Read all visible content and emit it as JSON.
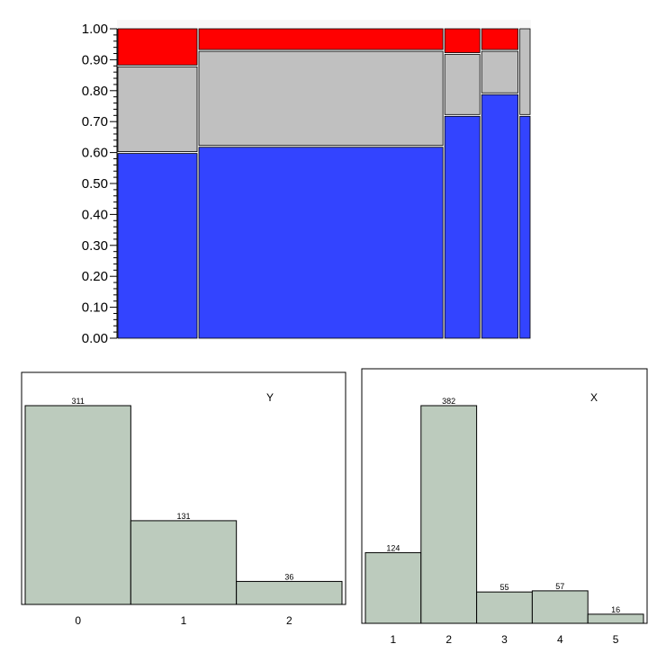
{
  "colors": {
    "level_0": "#3344ff",
    "level_1": "#c0c0c0",
    "level_2": "#ff0000",
    "histogram_fill": "#bccbbd",
    "panel_background": "#f8f8f8"
  },
  "chart_data": [
    {
      "type": "mosaic",
      "y_axis": {
        "ylim": [
          0,
          1
        ],
        "ticks": [
          "0.00",
          "0.10",
          "0.20",
          "0.30",
          "0.40",
          "0.50",
          "0.60",
          "0.70",
          "0.80",
          "0.90",
          "1.00"
        ]
      },
      "x_categories": [
        "1",
        "2",
        "3",
        "4",
        "5"
      ],
      "x_widths": [
        124,
        382,
        55,
        57,
        16
      ],
      "stack_levels": [
        "0",
        "1",
        "2"
      ],
      "proportions": [
        [
          0.6,
          0.28,
          0.12
        ],
        [
          0.62,
          0.31,
          0.07
        ],
        [
          0.72,
          0.2,
          0.08
        ],
        [
          0.79,
          0.14,
          0.07
        ],
        [
          0.72,
          0.28,
          0.0
        ]
      ]
    },
    {
      "type": "bar",
      "title": "Y",
      "categories": [
        "0",
        "1",
        "2"
      ],
      "values": [
        311,
        131,
        36
      ],
      "value_labels": [
        "311",
        "131",
        "36"
      ]
    },
    {
      "type": "bar",
      "title": "X",
      "categories": [
        "1",
        "2",
        "3",
        "4",
        "5"
      ],
      "values": [
        124,
        382,
        55,
        57,
        16
      ],
      "value_labels": [
        "124",
        "382",
        "55",
        "57",
        "16"
      ]
    }
  ]
}
